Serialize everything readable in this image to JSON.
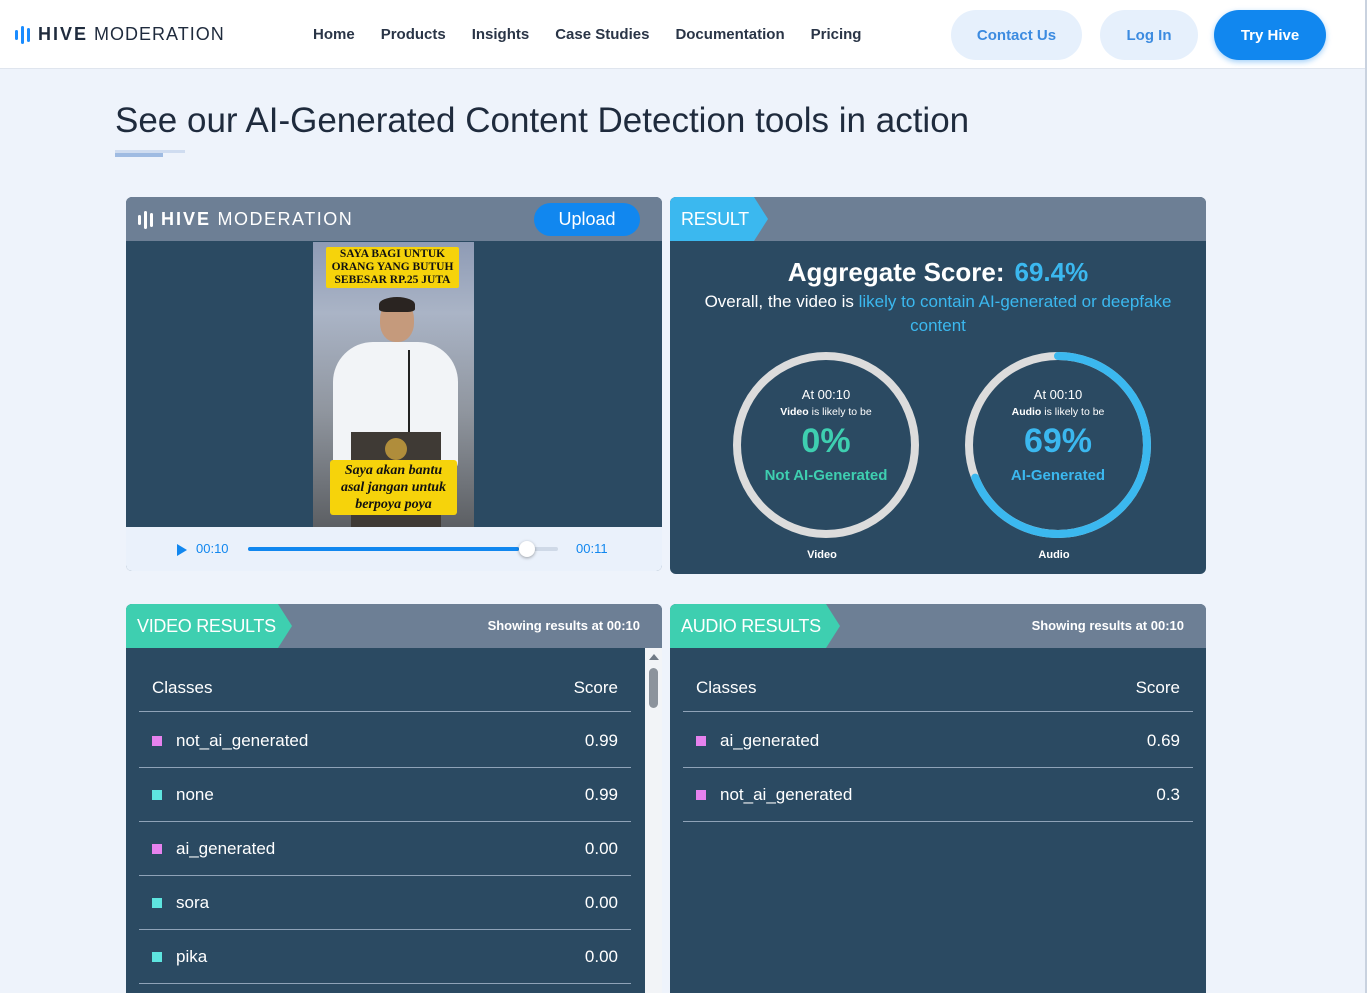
{
  "header": {
    "logo_bold": "HIVE",
    "logo_light": "MODERATION",
    "nav": [
      "Home",
      "Products",
      "Insights",
      "Case Studies",
      "Documentation",
      "Pricing"
    ],
    "contact_label": "Contact Us",
    "login_label": "Log In",
    "try_label": "Try Hive"
  },
  "page": {
    "title": "See our AI-Generated Content Detection tools in action"
  },
  "player": {
    "logo_bold": "HIVE",
    "logo_light": "MODERATION",
    "upload_label": "Upload",
    "caption_top": "SAYA BAGI UNTUK ORANG YANG BUTUH SEBESAR RP.25 JUTA",
    "caption_bottom": "Saya akan bantu asal jangan untuk berpoya poya",
    "current_time": "00:10",
    "duration": "00:11",
    "progress": 0.9
  },
  "result": {
    "tag": "RESULT",
    "aggregate_label": "Aggregate Score:",
    "aggregate_value": "69.4%",
    "overall_prefix": "Overall, the video is ",
    "overall_highlight": "likely to contain AI-generated or deepfake content",
    "video_gauge": {
      "at": "At 00:10",
      "subject": "Video",
      "likely": " is likely to be",
      "percent": "0%",
      "value": 0.0,
      "verdict": "Not AI-Generated",
      "verdict_color": "#3ecfb0",
      "caption": "Video"
    },
    "audio_gauge": {
      "at": "At 00:10",
      "subject": "Audio",
      "likely": " is likely to be",
      "percent": "69%",
      "value": 0.69,
      "verdict": "AI-Generated",
      "verdict_color": "#3bb8ef",
      "caption": "Audio"
    }
  },
  "video_results": {
    "tag": "VIDEO RESULTS",
    "showing": "Showing results at 00:10",
    "col_classes": "Classes",
    "col_score": "Score",
    "rows": [
      {
        "name": "not_ai_generated",
        "score": "0.99",
        "color": "#e682ee"
      },
      {
        "name": "none",
        "score": "0.99",
        "color": "#5ee5e0"
      },
      {
        "name": "ai_generated",
        "score": "0.00",
        "color": "#e682ee"
      },
      {
        "name": "sora",
        "score": "0.00",
        "color": "#5ee5e0"
      },
      {
        "name": "pika",
        "score": "0.00",
        "color": "#5ee5e0"
      }
    ]
  },
  "audio_results": {
    "tag": "AUDIO RESULTS",
    "showing": "Showing results at 00:10",
    "col_classes": "Classes",
    "col_score": "Score",
    "rows": [
      {
        "name": "ai_generated",
        "score": "0.69",
        "color": "#e682ee"
      },
      {
        "name": "not_ai_generated",
        "score": "0.3",
        "color": "#e682ee"
      }
    ]
  }
}
